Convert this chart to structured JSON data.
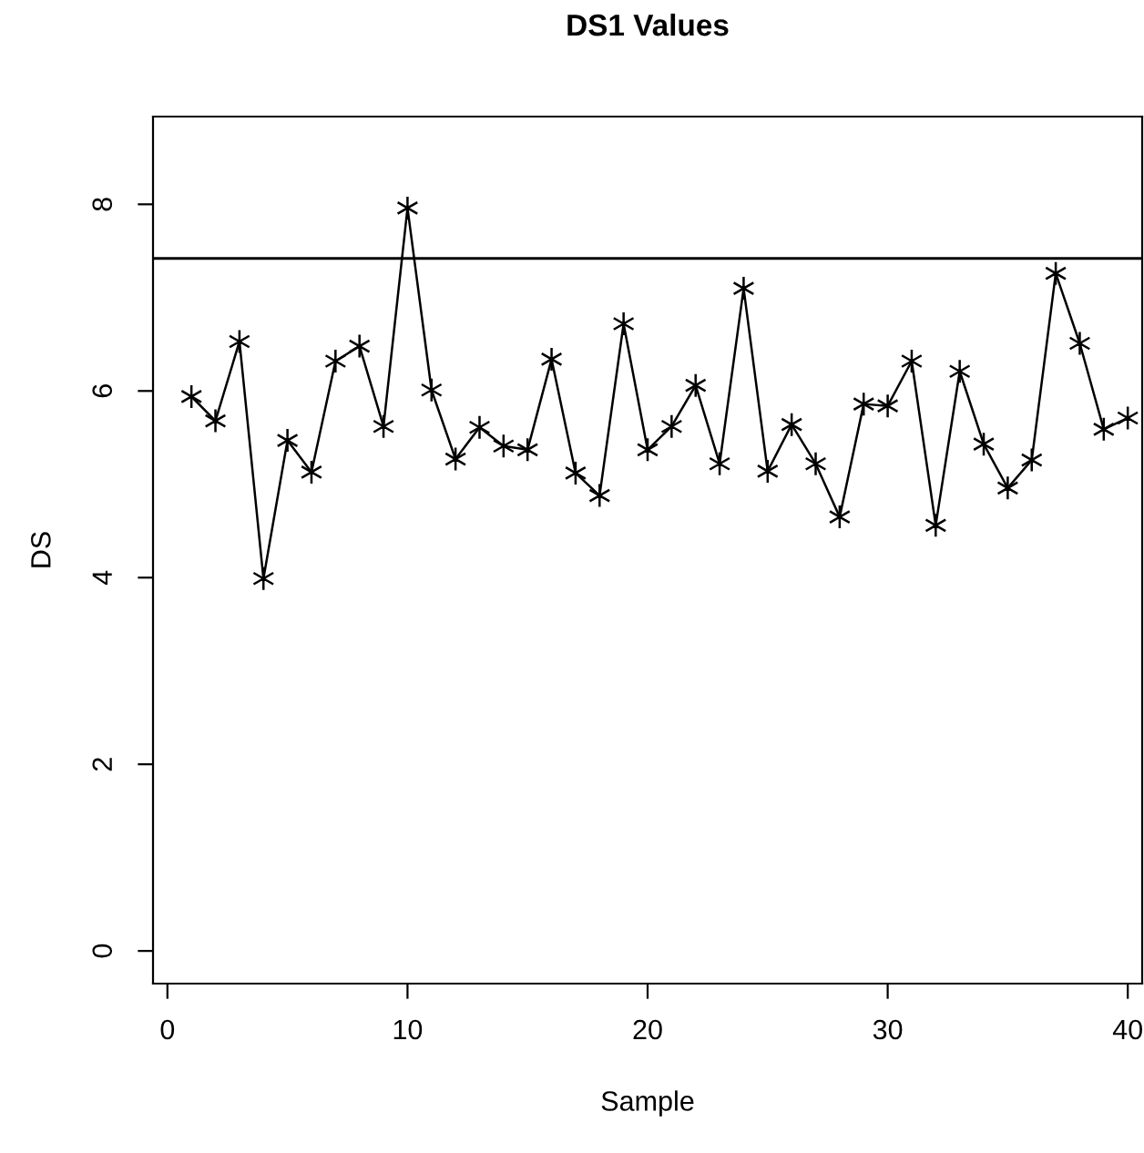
{
  "chart_data": {
    "type": "line",
    "title": "DS1 Values",
    "xlabel": "Sample",
    "ylabel": "DS",
    "x": [
      1,
      2,
      3,
      4,
      5,
      6,
      7,
      8,
      9,
      10,
      11,
      12,
      13,
      14,
      15,
      16,
      17,
      18,
      19,
      20,
      21,
      22,
      23,
      24,
      25,
      26,
      27,
      28,
      29,
      30,
      31,
      32,
      33,
      34,
      35,
      36,
      37,
      38,
      39,
      40
    ],
    "series": [
      {
        "color": "#000000",
        "values": [
          5.94,
          5.68,
          6.53,
          3.99,
          5.47,
          5.13,
          6.32,
          6.48,
          5.62,
          7.96,
          6.01,
          5.27,
          5.61,
          5.41,
          5.37,
          6.34,
          5.12,
          4.88,
          6.72,
          5.37,
          5.62,
          6.06,
          5.22,
          7.1,
          5.14,
          5.64,
          5.22,
          4.65,
          5.86,
          5.84,
          6.32,
          4.56,
          6.21,
          5.43,
          4.96,
          5.26,
          7.26,
          6.51,
          5.59,
          5.71
        ]
      }
    ],
    "ref_lines": [
      {
        "axis": "y",
        "value": 7.42,
        "color": "#000000"
      }
    ],
    "xlim": [
      -0.6,
      40.6
    ],
    "ylim": [
      -0.35,
      8.94
    ],
    "xticks": [
      0,
      10,
      20,
      30,
      40
    ],
    "yticks": [
      0,
      2,
      4,
      6,
      8
    ],
    "marker": "cross",
    "line_style": "solid",
    "grid": false,
    "legend": false
  }
}
